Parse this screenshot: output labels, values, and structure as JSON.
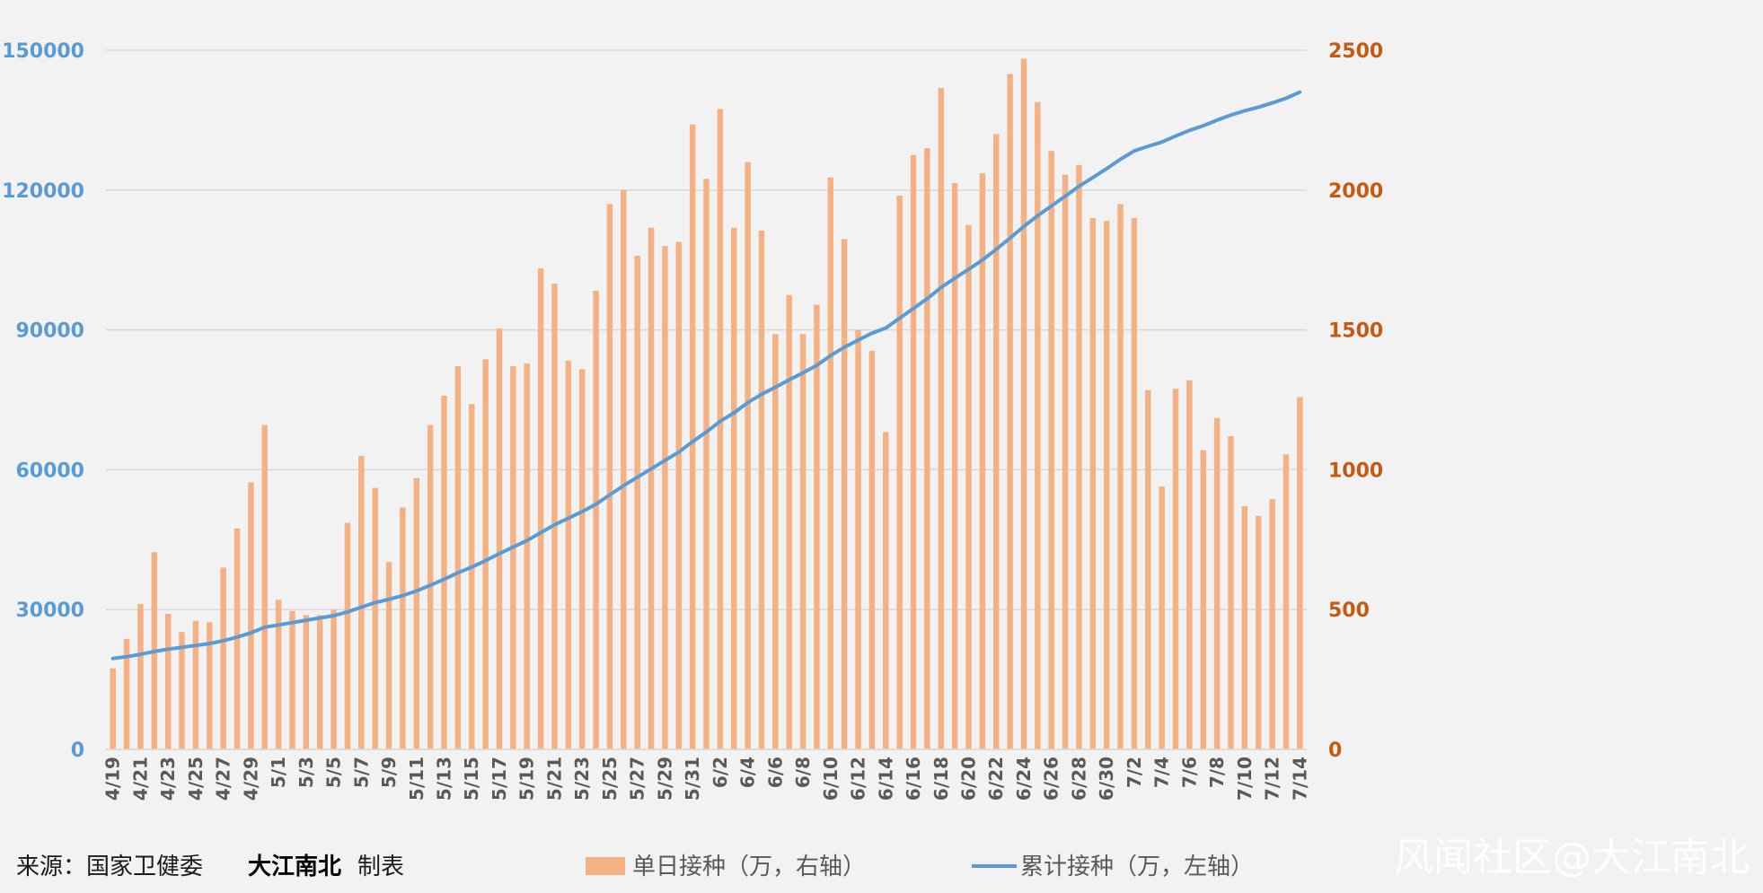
{
  "colors": {
    "background": "#f2f2f2",
    "bar": "#f4b183",
    "line": "#5b9bd5",
    "left_axis": "#5b9bd5",
    "right_axis": "#c55a11",
    "grid": "#d9d9d9"
  },
  "footer": {
    "source": "来源：国家卫健委",
    "maker_name": "大江南北",
    "maker_suffix": "制表"
  },
  "watermark": "风闻社区@大江南北",
  "chart_data": {
    "type": "bar",
    "combo": "bar (right axis) + line (left axis)",
    "categories": [
      "4/19",
      "4/20",
      "4/21",
      "4/22",
      "4/23",
      "4/24",
      "4/25",
      "4/26",
      "4/27",
      "4/28",
      "4/29",
      "4/30",
      "5/1",
      "5/2",
      "5/3",
      "5/4",
      "5/5",
      "5/6",
      "5/7",
      "5/8",
      "5/9",
      "5/10",
      "5/11",
      "5/12",
      "5/13",
      "5/14",
      "5/15",
      "5/16",
      "5/17",
      "5/18",
      "5/19",
      "5/20",
      "5/21",
      "5/22",
      "5/23",
      "5/24",
      "5/25",
      "5/26",
      "5/27",
      "5/28",
      "5/29",
      "5/30",
      "5/31",
      "6/1",
      "6/2",
      "6/3",
      "6/4",
      "6/5",
      "6/6",
      "6/7",
      "6/8",
      "6/9",
      "6/10",
      "6/11",
      "6/12",
      "6/13",
      "6/14",
      "6/15",
      "6/16",
      "6/17",
      "6/18",
      "6/19",
      "6/20",
      "6/21",
      "6/22",
      "6/23",
      "6/24",
      "6/25",
      "6/26",
      "6/27",
      "6/28",
      "6/29",
      "6/30",
      "7/1",
      "7/2",
      "7/3",
      "7/4",
      "7/5",
      "7/6",
      "7/7",
      "7/8",
      "7/9",
      "7/10",
      "7/11",
      "7/12",
      "7/13",
      "7/14"
    ],
    "x_tick_labels": [
      "4/19",
      "4/21",
      "4/23",
      "4/25",
      "4/27",
      "4/29",
      "5/1",
      "5/3",
      "5/5",
      "5/7",
      "5/9",
      "5/11",
      "5/13",
      "5/15",
      "5/17",
      "5/19",
      "5/21",
      "5/23",
      "5/25",
      "5/27",
      "5/29",
      "5/31",
      "6/2",
      "6/4",
      "6/6",
      "6/8",
      "6/10",
      "6/12",
      "6/14",
      "6/16",
      "6/18",
      "6/20",
      "6/22",
      "6/24",
      "6/26",
      "6/28",
      "6/30",
      "7/2",
      "7/4",
      "7/6",
      "7/8",
      "7/10",
      "7/12",
      "7/14"
    ],
    "series": [
      {
        "name": "单日接种（万，右轴）",
        "type": "bar",
        "axis": "right",
        "values": [
          290,
          395,
          520,
          705,
          485,
          420,
          460,
          455,
          650,
          790,
          955,
          1160,
          535,
          495,
          480,
          480,
          500,
          810,
          1050,
          935,
          670,
          865,
          970,
          1160,
          1265,
          1370,
          1235,
          1395,
          1505,
          1370,
          1380,
          1720,
          1665,
          1390,
          1360,
          1640,
          1950,
          2000,
          1765,
          1865,
          1800,
          1815,
          2235,
          2040,
          2290,
          1865,
          2100,
          1855,
          1485,
          1625,
          1485,
          1590,
          2045,
          1825,
          1500,
          1425,
          1135,
          1980,
          2125,
          2150,
          2365,
          2025,
          1875,
          2060,
          2200,
          2415,
          2470,
          2315,
          2140,
          2055,
          2090,
          1900,
          1890,
          1950,
          1900,
          1285,
          940,
          1290,
          1320,
          1070,
          1185,
          1120,
          870,
          835,
          895,
          1055,
          1260
        ]
      },
      {
        "name": "累计接种（万，左轴）",
        "type": "line",
        "axis": "left",
        "values": [
          19500,
          19900,
          20400,
          21000,
          21500,
          21900,
          22300,
          22700,
          23300,
          24100,
          25000,
          26200,
          26700,
          27200,
          27700,
          28200,
          28700,
          29500,
          30500,
          31500,
          32200,
          33000,
          34000,
          35200,
          36500,
          37900,
          39100,
          40500,
          42000,
          43400,
          44800,
          46500,
          48200,
          49600,
          51000,
          52600,
          54600,
          56600,
          58400,
          60200,
          62000,
          63800,
          66000,
          68100,
          70400,
          72200,
          74400,
          76200,
          77700,
          79300,
          80800,
          82400,
          84500,
          86300,
          87800,
          89300,
          90400,
          92500,
          94600,
          96700,
          99100,
          101100,
          103000,
          105000,
          107300,
          109700,
          112200,
          114500,
          116600,
          118700,
          120800,
          122700,
          124600,
          126600,
          128400,
          129400,
          130300,
          131600,
          132800,
          133800,
          135000,
          136100,
          137000,
          137800,
          138700,
          139700,
          141000
        ]
      }
    ],
    "y_left": {
      "ylim": [
        0,
        150000
      ],
      "ticks": [
        0,
        30000,
        60000,
        90000,
        120000,
        150000
      ]
    },
    "y_right": {
      "ylim": [
        0,
        2500
      ],
      "ticks": [
        0,
        500,
        1000,
        1500,
        2000,
        2500
      ]
    },
    "grid": true,
    "legend_position": "bottom"
  }
}
